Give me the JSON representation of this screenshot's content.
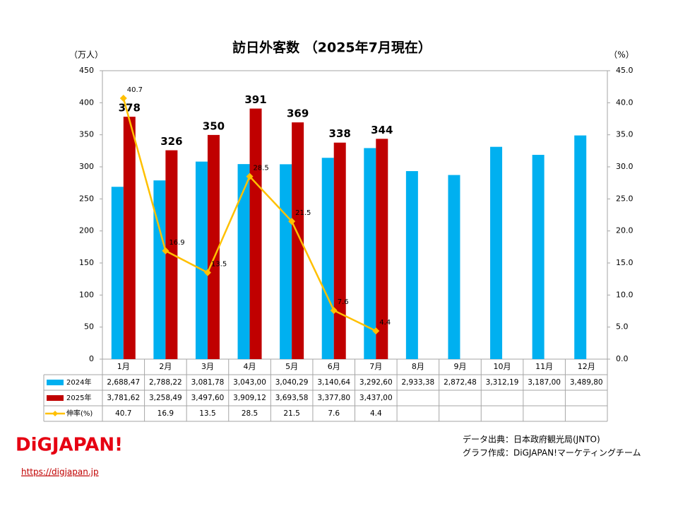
{
  "chart_data": {
    "type": "bar-line",
    "title": "訪日外客数 （2025年7月現在）",
    "ylabel": "（万人）",
    "y2label": "（%）",
    "categories": [
      "1月",
      "2月",
      "3月",
      "4月",
      "5月",
      "6月",
      "7月",
      "8月",
      "9月",
      "10月",
      "11月",
      "12月"
    ],
    "series": [
      {
        "name": "2024年",
        "kind": "bar",
        "color": "#00b0f0",
        "values": [
          268.847,
          278.822,
          308.178,
          304.3,
          304.029,
          314.064,
          329.26,
          293.338,
          287.248,
          331.219,
          318.7,
          348.98
        ],
        "table_labels": [
          "2,688,47",
          "2,788,22",
          "3,081,78",
          "3,043,00",
          "3,040,29",
          "3,140,64",
          "3,292,60",
          "2,933,38",
          "2,872,48",
          "3,312,19",
          "3,187,00",
          "3,489,80"
        ]
      },
      {
        "name": "2025年",
        "kind": "bar",
        "color": "#c00000",
        "values": [
          378.162,
          325.849,
          349.76,
          390.912,
          369.358,
          337.78,
          343.7,
          null,
          null,
          null,
          null,
          null
        ],
        "value_labels": [
          "378",
          "326",
          "350",
          "391",
          "369",
          "338",
          "344",
          null,
          null,
          null,
          null,
          null
        ],
        "table_labels": [
          "3,781,62",
          "3,258,49",
          "3,497,60",
          "3,909,12",
          "3,693,58",
          "3,377,80",
          "3,437,00",
          null,
          null,
          null,
          null,
          null
        ]
      },
      {
        "name": "伸率(%)",
        "kind": "line",
        "axis": "y2",
        "color": "#ffc000",
        "values": [
          40.7,
          16.9,
          13.5,
          28.5,
          21.5,
          7.6,
          4.4,
          null,
          null,
          null,
          null,
          null
        ]
      }
    ],
    "ylim": [
      0,
      450
    ],
    "yticks": [
      0,
      50,
      100,
      150,
      200,
      250,
      300,
      350,
      400,
      450
    ],
    "y2lim": [
      0,
      45
    ],
    "y2ticks": [
      {
        "value": 0,
        "label": "0.0"
      },
      {
        "value": 5,
        "label": "5.0"
      },
      {
        "value": 10,
        "label": "10.0"
      },
      {
        "value": 15,
        "label": "15.0"
      },
      {
        "value": 20,
        "label": "20.0"
      },
      {
        "value": 25,
        "label": "25.0"
      },
      {
        "value": 30,
        "label": "30.0"
      },
      {
        "value": 35,
        "label": "35.0"
      },
      {
        "value": 40,
        "label": "40.0"
      },
      {
        "value": 45,
        "label": "45.0"
      }
    ],
    "source": "データ出典：日本政府観光局(JNTO)",
    "credit": "グラフ作成：DiGJAPAN!マーケティングチーム",
    "logo": "DiGJAPAN!",
    "url": "https://digjapan.jp"
  }
}
